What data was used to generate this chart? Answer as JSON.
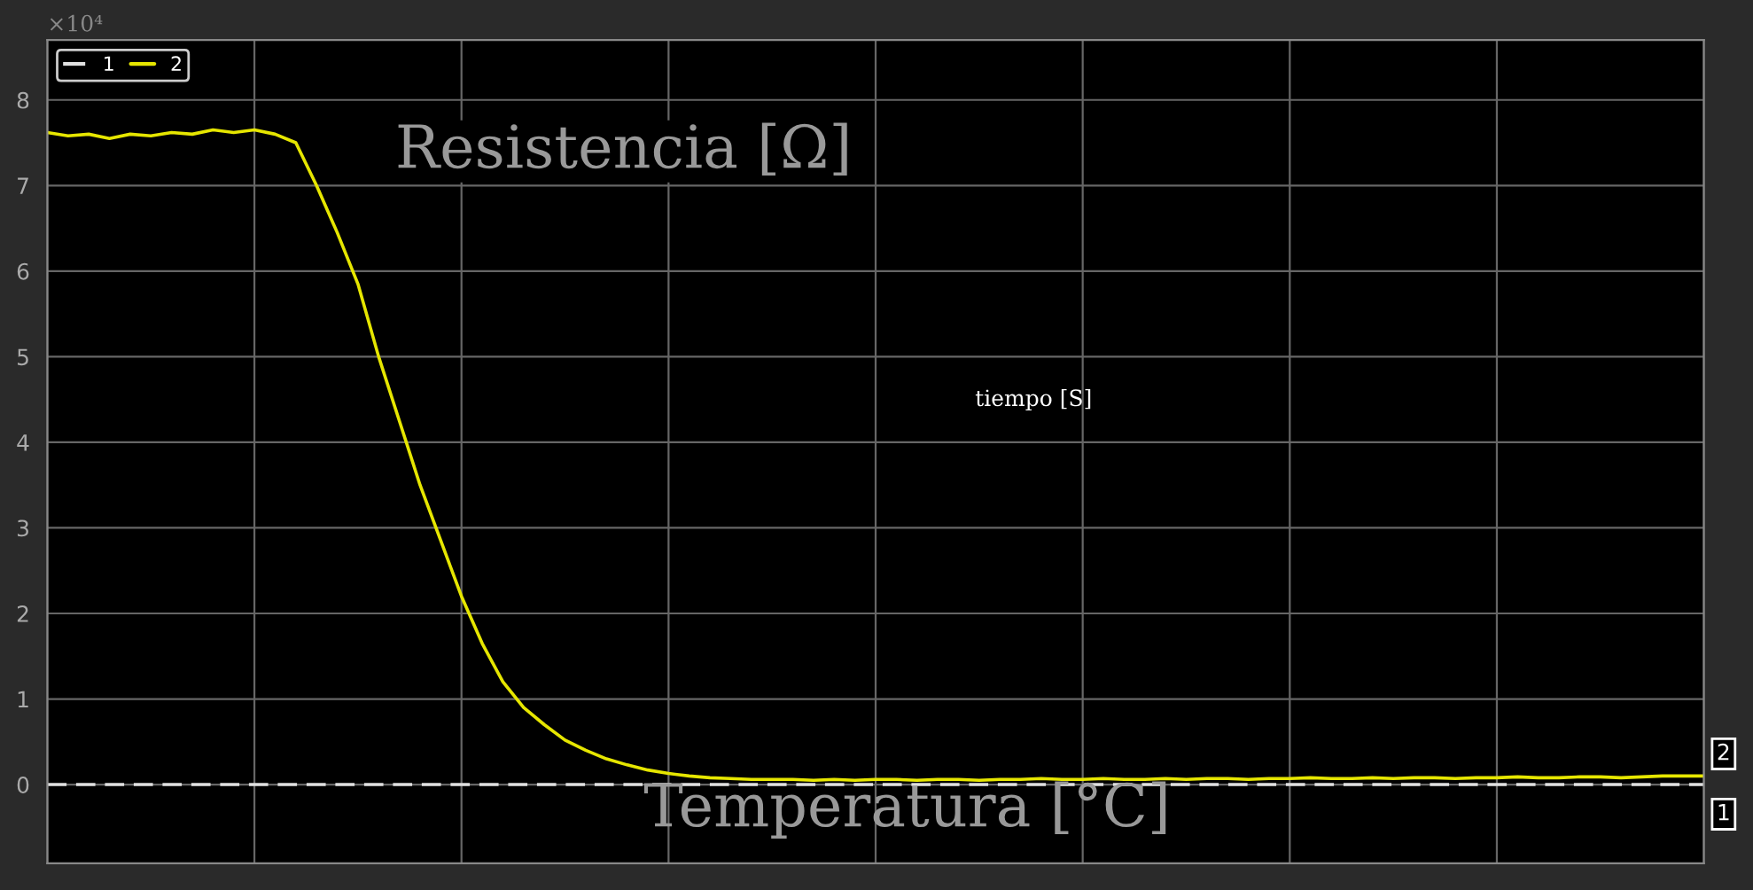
{
  "chart_data": {
    "type": "line",
    "categories": [
      null,
      null,
      null,
      null,
      null,
      null,
      null,
      null,
      null,
      null,
      null,
      null,
      null,
      null,
      null,
      null,
      null,
      null,
      null,
      null,
      null,
      null,
      null,
      null,
      null,
      null,
      null,
      null,
      null,
      null,
      null,
      null,
      null,
      null,
      null,
      null,
      null,
      null,
      null,
      null,
      null,
      null,
      null,
      null,
      null,
      null,
      null,
      null,
      null,
      null,
      null,
      null,
      null,
      null,
      null,
      null,
      null,
      null,
      null,
      null,
      null,
      null,
      null,
      null,
      null,
      null,
      null,
      null,
      null,
      null,
      null,
      null,
      null,
      null,
      null,
      null,
      null,
      null,
      null,
      null,
      null
    ],
    "series": [
      {
        "name": "1",
        "color": "#e0e0e0",
        "line_style": "dashed",
        "values": [
          0,
          0,
          0,
          0,
          0,
          0,
          0,
          0,
          0,
          0,
          0,
          0,
          0,
          0,
          0,
          0,
          0,
          0,
          0,
          0,
          0,
          0,
          0,
          0,
          0,
          0,
          0,
          0,
          0,
          0,
          0,
          0,
          0,
          0,
          0,
          0,
          0,
          0,
          0,
          0,
          0,
          0,
          0,
          0,
          0,
          0,
          0,
          0,
          0,
          0,
          0,
          0,
          0,
          0,
          0,
          0,
          0,
          0,
          0,
          0,
          0,
          0,
          0,
          0,
          0,
          0,
          0,
          0,
          0,
          0,
          0,
          0,
          0,
          0,
          0,
          0,
          0,
          0,
          0,
          0,
          0
        ]
      },
      {
        "name": "2",
        "color": "#e6e600",
        "line_style": "solid",
        "values": [
          7.62,
          7.58,
          7.6,
          7.55,
          7.6,
          7.58,
          7.62,
          7.6,
          7.65,
          7.62,
          7.65,
          7.6,
          7.5,
          7.0,
          6.45,
          5.85,
          5.0,
          4.25,
          3.5,
          2.85,
          2.2,
          1.65,
          1.2,
          0.9,
          0.7,
          0.52,
          0.4,
          0.3,
          0.23,
          0.17,
          0.13,
          0.1,
          0.08,
          0.07,
          0.06,
          0.06,
          0.06,
          0.05,
          0.06,
          0.05,
          0.06,
          0.06,
          0.05,
          0.06,
          0.06,
          0.05,
          0.06,
          0.06,
          0.07,
          0.06,
          0.06,
          0.07,
          0.06,
          0.06,
          0.07,
          0.06,
          0.07,
          0.07,
          0.06,
          0.07,
          0.07,
          0.08,
          0.07,
          0.07,
          0.08,
          0.07,
          0.08,
          0.08,
          0.07,
          0.08,
          0.08,
          0.09,
          0.08,
          0.08,
          0.09,
          0.09,
          0.08,
          0.09,
          0.1,
          0.1,
          0.1
        ]
      }
    ],
    "ylim": [
      -0.92,
      8.7
    ],
    "yticks": [
      0,
      1,
      2,
      3,
      4,
      5,
      6,
      7,
      8
    ],
    "tick_labels": "y",
    "grid": true,
    "legend": "top left",
    "annotations": [
      "×10⁴",
      "Resistencia [Ω]",
      "tiempo [S]",
      "Temperatura [°C]"
    ]
  }
}
